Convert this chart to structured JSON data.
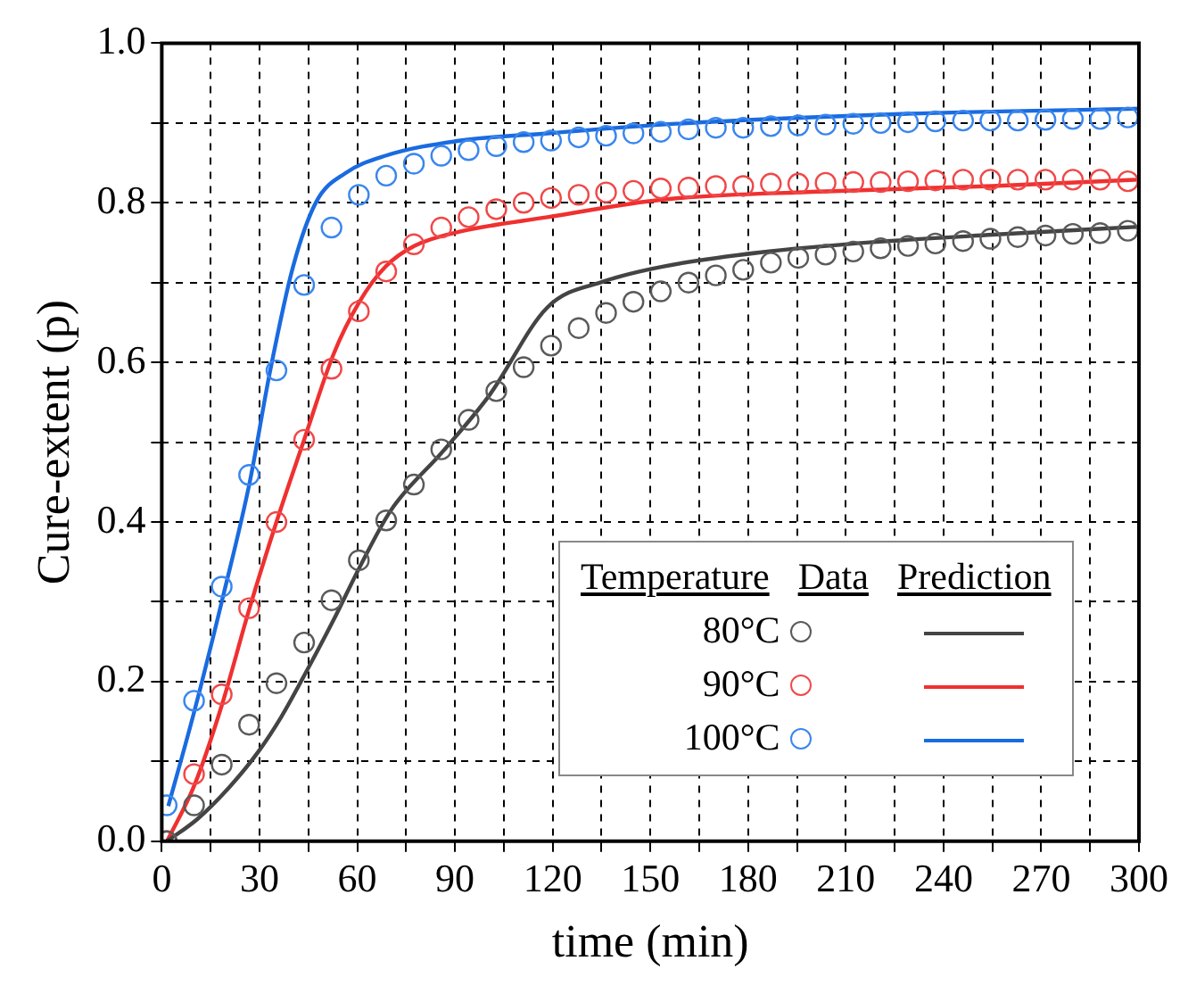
{
  "chart_data": {
    "type": "scatter",
    "xlabel": "time (min)",
    "ylabel": "Cure-extent (p)",
    "legend_title": "Temperature",
    "annotations": [
      "Data",
      "Prediction"
    ],
    "xlim": [
      0,
      300
    ],
    "ylim": [
      0,
      1
    ],
    "xticks": [
      0,
      {
        "value": 15,
        "label": null
      },
      30,
      {
        "value": 45,
        "label": null
      },
      60,
      {
        "value": 75,
        "label": null
      },
      90,
      {
        "value": 105,
        "label": null
      },
      120,
      {
        "value": 135,
        "label": null
      },
      150,
      {
        "value": 165,
        "label": null
      },
      180,
      {
        "value": 195,
        "label": null
      },
      210,
      {
        "value": 225,
        "label": null
      },
      240,
      {
        "value": 255,
        "label": null
      },
      270,
      {
        "value": 285,
        "label": null
      },
      300
    ],
    "yticks": [
      {
        "value": 0,
        "label": "0.0"
      },
      {
        "value": 0.1,
        "label": null
      },
      0.2,
      {
        "value": 0.3,
        "label": null
      },
      0.4,
      {
        "value": 0.5,
        "label": null
      },
      0.6,
      {
        "value": 0.7,
        "label": null
      },
      0.8,
      {
        "value": 0.9,
        "label": null
      },
      {
        "value": 1,
        "label": "1.0"
      }
    ],
    "grid": true,
    "legend": "bottom right",
    "x": [
      1.5,
      9.9,
      18.4,
      26.8,
      35.2,
      43.7,
      52.1,
      60.5,
      68.9,
      77.4,
      85.8,
      94.2,
      102.7,
      111.1,
      119.5,
      128.0,
      136.4,
      144.8,
      153.2,
      161.7,
      170.1,
      178.5,
      187.0,
      195.4,
      203.8,
      212.3,
      220.7,
      229.1,
      237.5,
      246.0,
      254.4,
      262.8,
      271.3,
      279.7,
      288.1,
      296.6
    ],
    "series": [
      {
        "name": "80°C",
        "type": "scatter",
        "marker": "circle",
        "color": "#5a5a5a",
        "values": [
          0.0,
          0.045,
          0.096,
          0.146,
          0.198,
          0.249,
          0.302,
          0.352,
          0.402,
          0.447,
          0.491,
          0.528,
          0.564,
          0.594,
          0.621,
          0.643,
          0.662,
          0.676,
          0.689,
          0.7,
          0.709,
          0.716,
          0.725,
          0.731,
          0.735,
          0.739,
          0.743,
          0.746,
          0.749,
          0.752,
          0.755,
          0.757,
          0.759,
          0.761,
          0.762,
          0.765
        ]
      },
      {
        "name": "90°C",
        "type": "scatter",
        "marker": "circle",
        "color": "#f04848",
        "values": [
          0.0,
          0.084,
          0.184,
          0.292,
          0.4,
          0.503,
          0.592,
          0.664,
          0.714,
          0.748,
          0.769,
          0.782,
          0.792,
          0.8,
          0.806,
          0.81,
          0.813,
          0.815,
          0.818,
          0.819,
          0.821,
          0.821,
          0.824,
          0.824,
          0.825,
          0.826,
          0.826,
          0.827,
          0.828,
          0.829,
          0.829,
          0.829,
          0.829,
          0.829,
          0.829,
          0.827
        ]
      },
      {
        "name": "100°C",
        "type": "scatter",
        "marker": "circle",
        "color": "#3a86ee",
        "values": [
          0.045,
          0.176,
          0.319,
          0.459,
          0.59,
          0.697,
          0.769,
          0.81,
          0.834,
          0.849,
          0.859,
          0.866,
          0.871,
          0.876,
          0.878,
          0.882,
          0.884,
          0.887,
          0.889,
          0.892,
          0.894,
          0.894,
          0.896,
          0.897,
          0.898,
          0.899,
          0.9,
          0.901,
          0.902,
          0.903,
          0.903,
          0.903,
          0.904,
          0.905,
          0.905,
          0.907
        ]
      },
      {
        "type": "line",
        "marker": "none",
        "line_style": "solid",
        "color": "#444444",
        "x": [
          1.6,
          11,
          20.8,
          29.6,
          36.7,
          44.7,
          52.7,
          61.2,
          70.4,
          86.4,
          100.6,
          118.4,
          136.1,
          153.7,
          184,
          219.5,
          255,
          300
        ],
        "values": [
          0,
          0.028,
          0.068,
          0.112,
          0.156,
          0.215,
          0.277,
          0.347,
          0.415,
          0.489,
          0.559,
          0.669,
          0.702,
          0.72,
          0.738,
          0.751,
          0.76,
          0.77
        ]
      },
      {
        "type": "line",
        "marker": "none",
        "line_style": "solid",
        "color": "#f03030",
        "x": [
          1.6,
          10,
          18.4,
          26.8,
          35.2,
          43.7,
          52.7,
          60.7,
          68.7,
          77.6,
          91.7,
          118.4,
          153.7,
          201.8,
          255,
          300
        ],
        "values": [
          0,
          0.07,
          0.17,
          0.29,
          0.4,
          0.503,
          0.61,
          0.676,
          0.72,
          0.746,
          0.764,
          0.782,
          0.804,
          0.814,
          0.821,
          0.829
        ]
      },
      {
        "type": "line",
        "marker": "none",
        "line_style": "solid",
        "color": "#1a6be0",
        "x": [
          2,
          10,
          19,
          27,
          33.2,
          40.3,
          47.4,
          56.3,
          68.7,
          91.7,
          118.4,
          153.7,
          224.9,
          300
        ],
        "values": [
          0.044,
          0.163,
          0.31,
          0.45,
          0.588,
          0.72,
          0.801,
          0.837,
          0.859,
          0.878,
          0.887,
          0.898,
          0.911,
          0.918
        ]
      }
    ]
  }
}
